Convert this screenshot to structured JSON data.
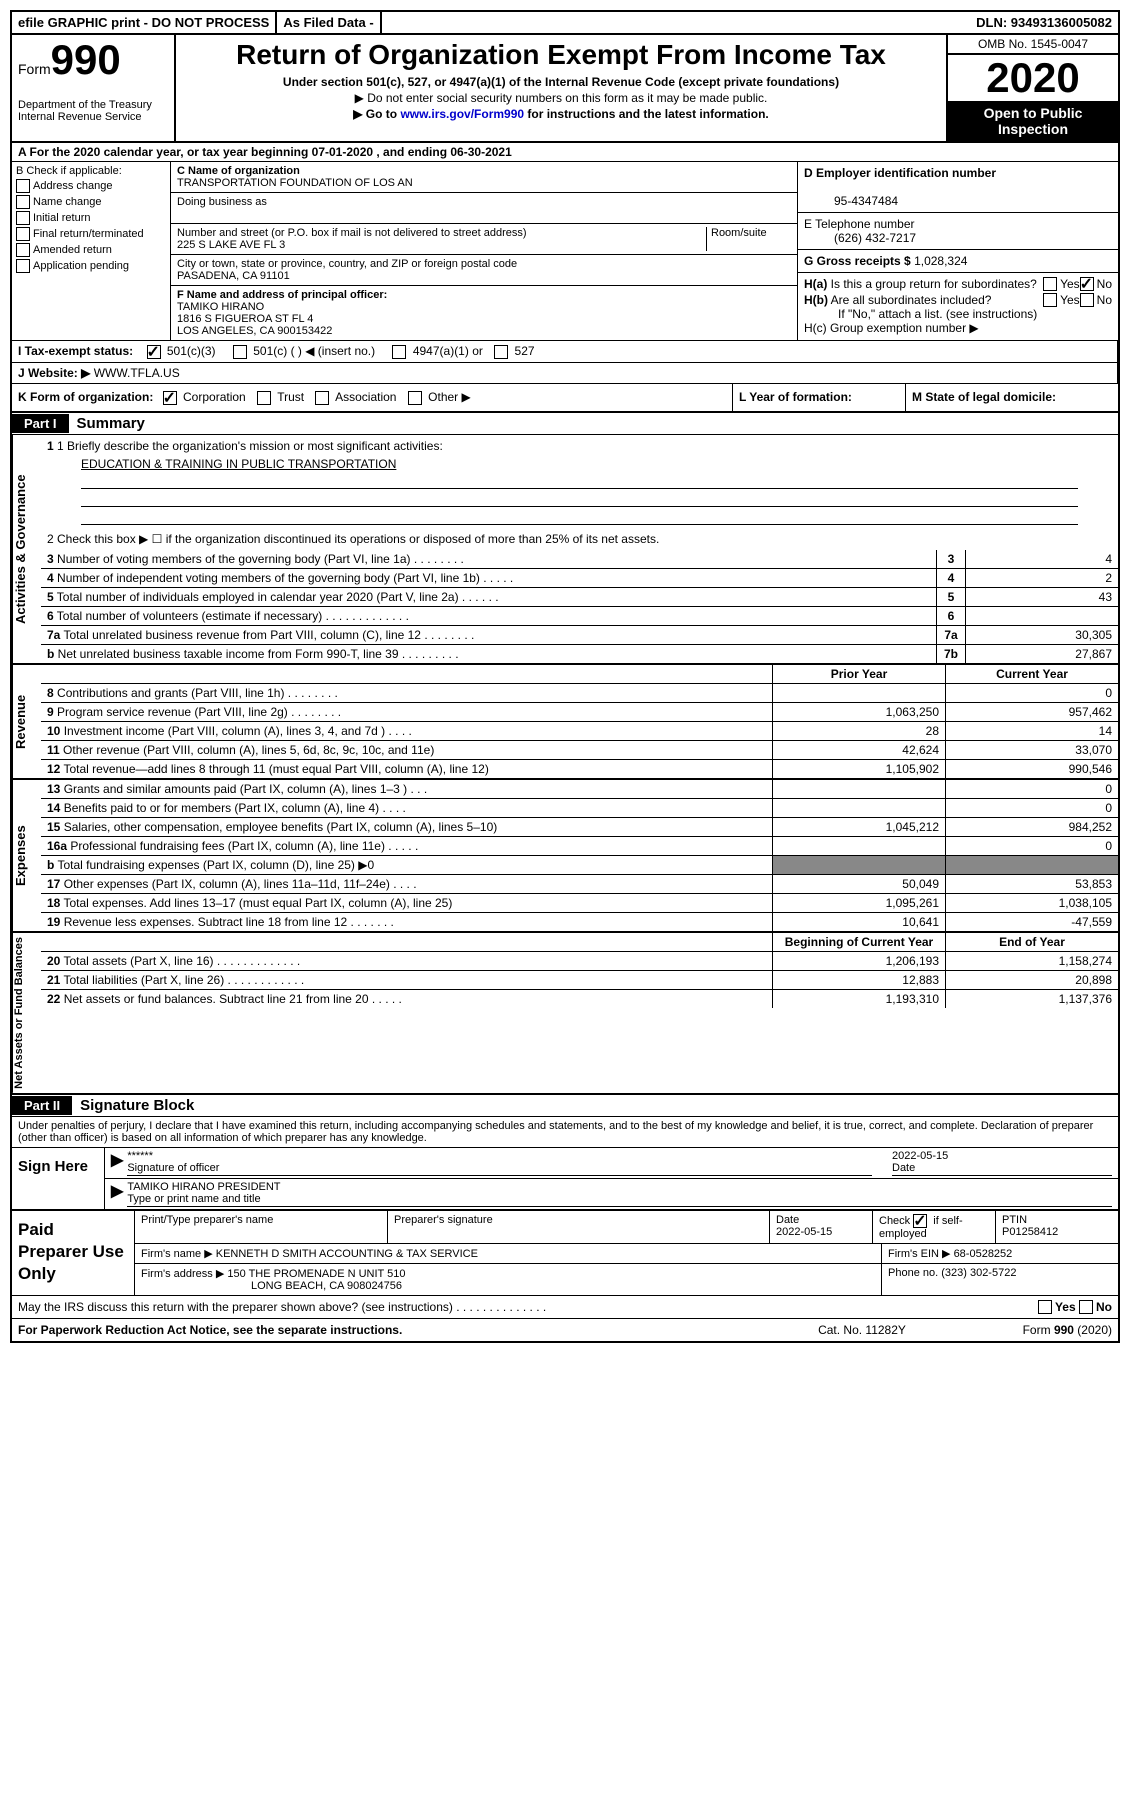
{
  "topbar": {
    "efile": "efile GRAPHIC print - DO NOT PROCESS",
    "asfiled": "As Filed Data -",
    "dln": "DLN: 93493136005082"
  },
  "header": {
    "form_prefix": "Form",
    "form_num": "990",
    "dept": "Department of the Treasury",
    "irs": "Internal Revenue Service",
    "title": "Return of Organization Exempt From Income Tax",
    "sub": "Under section 501(c), 527, or 4947(a)(1) of the Internal Revenue Code (except private foundations)",
    "instr1": "▶ Do not enter social security numbers on this form as it may be made public.",
    "instr2_pre": "▶ Go to ",
    "instr2_link": "www.irs.gov/Form990",
    "instr2_post": " for instructions and the latest information.",
    "omb": "OMB No. 1545-0047",
    "year": "2020",
    "open": "Open to Public Inspection"
  },
  "rowA": {
    "text": "A   For the 2020 calendar year, or tax year beginning 07-01-2020   , and ending 06-30-2021"
  },
  "colB": {
    "hdr": "B Check if applicable:",
    "items": [
      "Address change",
      "Name change",
      "Initial return",
      "Final return/terminated",
      "Amended return",
      "Application pending"
    ]
  },
  "colC": {
    "c_lbl": "C Name of organization",
    "c_val": "TRANSPORTATION FOUNDATION OF LOS AN",
    "dba_lbl": "Doing business as",
    "dba_val": "",
    "addr_lbl": "Number and street (or P.O. box if mail is not delivered to street address)",
    "room_lbl": "Room/suite",
    "addr_val": "225 S LAKE AVE FL 3",
    "city_lbl": "City or town, state or province, country, and ZIP or foreign postal code",
    "city_val": "PASADENA, CA  91101",
    "f_lbl": "F  Name and address of principal officer:",
    "f_name": "TAMIKO HIRANO",
    "f_addr1": "1816 S FIGUEROA ST FL 4",
    "f_addr2": "LOS ANGELES, CA  900153422"
  },
  "colD": {
    "d_lbl": "D Employer identification number",
    "d_val": "95-4347484",
    "e_lbl": "E Telephone number",
    "e_val": "(626) 432-7217",
    "g_lbl": "G Gross receipts $",
    "g_val": "1,028,324",
    "ha_lbl": "H(a)  Is this a group return for subordinates?",
    "ha_yes": "Yes",
    "ha_no": "No",
    "hb_lbl": "H(b)  Are all subordinates included?",
    "hb_yes": "Yes",
    "hb_no": "No",
    "hb_note": "If \"No,\" attach a list. (see instructions)",
    "hc_lbl": "H(c)  Group exemption number ▶"
  },
  "rowI": {
    "lbl": "I   Tax-exempt status:",
    "opts": [
      "501(c)(3)",
      "501(c) (   ) ◀ (insert no.)",
      "4947(a)(1) or",
      "527"
    ]
  },
  "rowJ": {
    "lbl": "J   Website: ▶",
    "val": "WWW.TFLA.US"
  },
  "rowK": {
    "lbl": "K Form of organization:",
    "opts": [
      "Corporation",
      "Trust",
      "Association",
      "Other ▶"
    ]
  },
  "rowL": {
    "l_lbl": "L Year of formation:",
    "m_lbl": "M State of legal domicile:"
  },
  "partI": {
    "tag": "Part I",
    "title": "Summary"
  },
  "ag": {
    "label": "Activities & Governance",
    "briefly": "1  Briefly describe the organization's mission or most significant activities:",
    "mission": "EDUCATION & TRAINING IN PUBLIC TRANSPORTATION",
    "line2": "2   Check this box ▶ ☐  if the organization discontinued its operations or disposed of more than 25% of its net assets.",
    "rows": [
      {
        "n": "3",
        "d": "Number of voting members of the governing body (Part VI, line 1a)  .   .   .   .   .   .   .   .",
        "k": "3",
        "v": "4"
      },
      {
        "n": "4",
        "d": "Number of independent voting members of the governing body (Part VI, line 1b)   .   .   .   .   .",
        "k": "4",
        "v": "2"
      },
      {
        "n": "5",
        "d": "Total number of individuals employed in calendar year 2020 (Part V, line 2a)   .   .   .   .   .   .",
        "k": "5",
        "v": "43"
      },
      {
        "n": "6",
        "d": "Total number of volunteers (estimate if necessary)   .   .   .   .   .   .   .   .   .   .   .   .   .",
        "k": "6",
        "v": ""
      },
      {
        "n": "7a",
        "d": "Total unrelated business revenue from Part VIII, column (C), line 12   .   .   .   .   .   .   .   .",
        "k": "7a",
        "v": "30,305"
      },
      {
        "n": "b",
        "d": "Net unrelated business taxable income from Form 990-T, line 39   .   .   .   .   .   .   .   .   .",
        "k": "7b",
        "v": "27,867"
      }
    ]
  },
  "twocol_hdr": {
    "py": "Prior Year",
    "cy": "Current Year"
  },
  "rev": {
    "label": "Revenue",
    "rows": [
      {
        "n": "8",
        "d": "Contributions and grants (Part VIII, line 1h)   .   .   .   .   .   .   .   .",
        "py": "",
        "cy": "0"
      },
      {
        "n": "9",
        "d": "Program service revenue (Part VIII, line 2g)   .   .   .   .   .   .   .   .",
        "py": "1,063,250",
        "cy": "957,462"
      },
      {
        "n": "10",
        "d": "Investment income (Part VIII, column (A), lines 3, 4, and 7d )   .   .   .   .",
        "py": "28",
        "cy": "14"
      },
      {
        "n": "11",
        "d": "Other revenue (Part VIII, column (A), lines 5, 6d, 8c, 9c, 10c, and 11e)",
        "py": "42,624",
        "cy": "33,070"
      },
      {
        "n": "12",
        "d": "Total revenue—add lines 8 through 11 (must equal Part VIII, column (A), line 12)",
        "py": "1,105,902",
        "cy": "990,546"
      }
    ]
  },
  "exp": {
    "label": "Expenses",
    "rows": [
      {
        "n": "13",
        "d": "Grants and similar amounts paid (Part IX, column (A), lines 1–3 )   .   .   .",
        "py": "",
        "cy": "0"
      },
      {
        "n": "14",
        "d": "Benefits paid to or for members (Part IX, column (A), line 4)   .   .   .   .",
        "py": "",
        "cy": "0"
      },
      {
        "n": "15",
        "d": "Salaries, other compensation, employee benefits (Part IX, column (A), lines 5–10)",
        "py": "1,045,212",
        "cy": "984,252"
      },
      {
        "n": "16a",
        "d": "Professional fundraising fees (Part IX, column (A), line 11e)   .   .   .   .   .",
        "py": "",
        "cy": "0"
      },
      {
        "n": "b",
        "d": "Total fundraising expenses (Part IX, column (D), line 25) ▶0",
        "py": "—",
        "cy": "—"
      },
      {
        "n": "17",
        "d": "Other expenses (Part IX, column (A), lines 11a–11d, 11f–24e)   .   .   .   .",
        "py": "50,049",
        "cy": "53,853"
      },
      {
        "n": "18",
        "d": "Total expenses. Add lines 13–17 (must equal Part IX, column (A), line 25)",
        "py": "1,095,261",
        "cy": "1,038,105"
      },
      {
        "n": "19",
        "d": "Revenue less expenses. Subtract line 18 from line 12 .   .   .   .   .   .   .",
        "py": "10,641",
        "cy": "-47,559"
      }
    ]
  },
  "na": {
    "label": "Net Assets or Fund Balances",
    "hdr": {
      "py": "Beginning of Current Year",
      "cy": "End of Year"
    },
    "rows": [
      {
        "n": "20",
        "d": "Total assets (Part X, line 16)   .   .   .   .   .   .   .   .   .   .   .   .   .",
        "py": "1,206,193",
        "cy": "1,158,274"
      },
      {
        "n": "21",
        "d": "Total liabilities (Part X, line 26)  .   .   .   .   .   .   .   .   .   .   .   .",
        "py": "12,883",
        "cy": "20,898"
      },
      {
        "n": "22",
        "d": "Net assets or fund balances. Subtract line 21 from line 20 .   .   .   .   .",
        "py": "1,193,310",
        "cy": "1,137,376"
      }
    ]
  },
  "partII": {
    "tag": "Part II",
    "title": "Signature Block"
  },
  "sig": {
    "intro": "Under penalties of perjury, I declare that I have examined this return, including accompanying schedules and statements, and to the best of my knowledge and belief, it is true, correct, and complete. Declaration of preparer (other than officer) is based on all information of which preparer has any knowledge.",
    "sign_here": "Sign Here",
    "stars": "******",
    "sig_lbl": "Signature of officer",
    "date": "2022-05-15",
    "date_lbl": "Date",
    "name": "TAMIKO HIRANO PRESIDENT",
    "name_lbl": "Type or print name and title"
  },
  "paid": {
    "label": "Paid Preparer Use Only",
    "h1": "Print/Type preparer's name",
    "h2": "Preparer's signature",
    "h3": "Date",
    "h3v": "2022-05-15",
    "h4": "Check ☑ if self-employed",
    "h5": "PTIN",
    "h5v": "P01258412",
    "firm_lbl": "Firm's name    ▶",
    "firm": "KENNETH D SMITH ACCOUNTING & TAX SERVICE",
    "ein_lbl": "Firm's EIN ▶",
    "ein": "68-0528252",
    "addr_lbl": "Firm's address ▶",
    "addr1": "150 THE PROMENADE N UNIT 510",
    "addr2": "LONG BEACH, CA  908024756",
    "ph_lbl": "Phone no.",
    "ph": "(323) 302-5722"
  },
  "discuss": "May the IRS discuss this return with the preparer shown above? (see instructions)   .   .   .   .   .   .   .   .   .   .   .   .   .   .",
  "footer": {
    "l": "For Paperwork Reduction Act Notice, see the separate instructions.",
    "c": "Cat. No. 11282Y",
    "r": "Form 990 (2020)"
  }
}
